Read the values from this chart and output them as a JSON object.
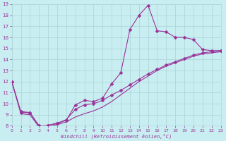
{
  "xlabel": "Windchill (Refroidissement éolien,°C)",
  "xlim": [
    0,
    23
  ],
  "ylim": [
    8,
    19
  ],
  "xticks": [
    0,
    1,
    2,
    3,
    4,
    5,
    6,
    7,
    8,
    9,
    10,
    11,
    12,
    13,
    14,
    15,
    16,
    17,
    18,
    19,
    20,
    21,
    22,
    23
  ],
  "yticks": [
    8,
    9,
    10,
    11,
    12,
    13,
    14,
    15,
    16,
    17,
    18,
    19
  ],
  "bg_color": "#c9eef1",
  "grid_color": "#aed8db",
  "line_color": "#993399",
  "line1_x": [
    0,
    1,
    2,
    3,
    4,
    5,
    6,
    7,
    8,
    9,
    10,
    11,
    12,
    13,
    14,
    15,
    16,
    17,
    18,
    19,
    20,
    21,
    22,
    23
  ],
  "line1_y": [
    12.0,
    9.2,
    9.2,
    8.0,
    8.0,
    8.2,
    8.5,
    9.9,
    10.3,
    10.2,
    10.5,
    11.8,
    12.8,
    16.7,
    18.0,
    18.9,
    16.6,
    16.5,
    16.0,
    16.0,
    15.8,
    14.9,
    14.8,
    14.8
  ],
  "line2_x": [
    0,
    1,
    2,
    3,
    4,
    5,
    6,
    7,
    8,
    9,
    10,
    11,
    12,
    13,
    14,
    15,
    16,
    17,
    18,
    19,
    20,
    21,
    22,
    23
  ],
  "line2_y": [
    12.0,
    9.3,
    9.2,
    8.0,
    8.05,
    8.25,
    8.55,
    9.5,
    9.9,
    10.0,
    10.3,
    10.8,
    11.2,
    11.7,
    12.2,
    12.7,
    13.1,
    13.5,
    13.8,
    14.1,
    14.4,
    14.6,
    14.7,
    14.8
  ],
  "line3_x": [
    0,
    1,
    2,
    3,
    4,
    5,
    6,
    7,
    8,
    9,
    10,
    11,
    12,
    13,
    14,
    15,
    16,
    17,
    18,
    19,
    20,
    21,
    22,
    23
  ],
  "line3_y": [
    12.0,
    9.1,
    9.0,
    7.9,
    7.95,
    8.1,
    8.35,
    8.8,
    9.1,
    9.35,
    9.7,
    10.2,
    10.8,
    11.4,
    12.0,
    12.5,
    13.0,
    13.4,
    13.7,
    14.0,
    14.3,
    14.5,
    14.6,
    14.7
  ]
}
